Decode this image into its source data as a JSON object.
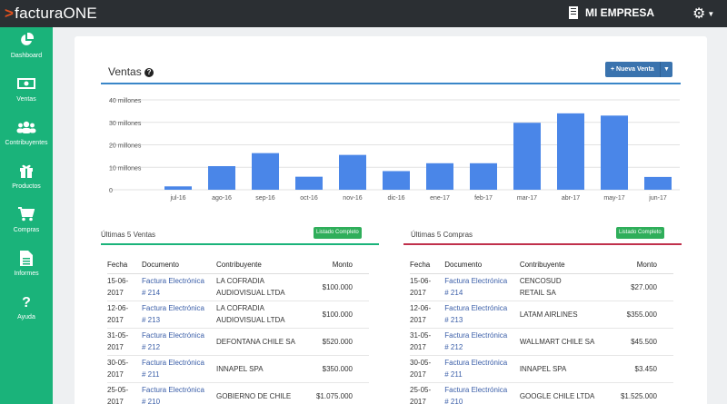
{
  "app": {
    "logo_caret": ">",
    "logo_text": "facturaONE",
    "company": "MI EMPRESA"
  },
  "sidebar": {
    "items": [
      {
        "label": "Dashboard",
        "icon": "pie-chart-icon"
      },
      {
        "label": "Ventas",
        "icon": "money-icon"
      },
      {
        "label": "Contribuyentes",
        "icon": "users-icon"
      },
      {
        "label": "Productos",
        "icon": "gift-icon"
      },
      {
        "label": "Compras",
        "icon": "cart-icon"
      },
      {
        "label": "Informes",
        "icon": "document-icon"
      },
      {
        "label": "Ayuda",
        "icon": "question-icon"
      }
    ]
  },
  "ventas": {
    "title": "Ventas",
    "new_button": "Nueva Venta"
  },
  "chart_data": {
    "type": "bar",
    "categories": [
      "jul-16",
      "ago-16",
      "sep-16",
      "oct-16",
      "nov-16",
      "dic-16",
      "ene-17",
      "feb-17",
      "mar-17",
      "abr-17",
      "may-17",
      "jun-17"
    ],
    "values": [
      1.5,
      10.5,
      16.3,
      5.8,
      15.5,
      8.3,
      11.8,
      11.8,
      29.8,
      34,
      33,
      5.7
    ],
    "y_ticks": [
      0,
      10,
      20,
      30,
      40
    ],
    "y_tick_labels": [
      "0",
      "10 millones",
      "20 millones",
      "30 millones",
      "40 millones"
    ],
    "ylim": [
      0,
      40
    ],
    "color": "#4a86e8",
    "grid": true
  },
  "ventas_table": {
    "title": "Últimas 5 Ventas",
    "button": "Listado Completo",
    "headers": [
      "Fecha",
      "Documento",
      "Contribuyente",
      "Monto"
    ],
    "rows": [
      [
        "15-06-\n2017",
        "Factura Electrónica\n# 214",
        "LA COFRADIA\nAUDIOVISUAL LTDA",
        "$100.000"
      ],
      [
        "12-06-\n2017",
        "Factura Electrónica\n# 213",
        "LA COFRADIA\nAUDIOVISUAL LTDA",
        "$100.000"
      ],
      [
        "31-05-\n2017",
        "Factura Electrónica\n# 212",
        "DEFONTANA CHILE SA",
        "$520.000"
      ],
      [
        "30-05-\n2017",
        "Factura Electrónica\n# 211",
        "INNAPEL SPA",
        "$350.000"
      ],
      [
        "25-05-\n2017",
        "Factura Electrónica\n# 210",
        "GOBIERNO DE CHILE",
        "$1.075.000"
      ]
    ]
  },
  "compras_table": {
    "title": "Últimas 5 Compras",
    "button": "Listado Completo",
    "headers": [
      "Fecha",
      "Documento",
      "Contribuyente",
      "Monto"
    ],
    "rows": [
      [
        "15-06-\n2017",
        "Factura Electrónica\n# 214",
        "CENCOSUD\nRETAIL SA",
        "$27.000"
      ],
      [
        "12-06-\n2017",
        "Factura Electrónica\n# 213",
        "LATAM AIRLINES",
        "$355.000"
      ],
      [
        "31-05-\n2017",
        "Factura Electrónica\n# 212",
        "WALLMART CHILE SA",
        "$45.500"
      ],
      [
        "30-05-\n2017",
        "Factura Electrónica\n# 211",
        "INNAPEL SPA",
        "$3.450"
      ],
      [
        "25-05-\n2017",
        "Factura Electrónica\n# 210",
        "GOOGLE CHILE LTDA",
        "$1.525.000"
      ]
    ]
  }
}
